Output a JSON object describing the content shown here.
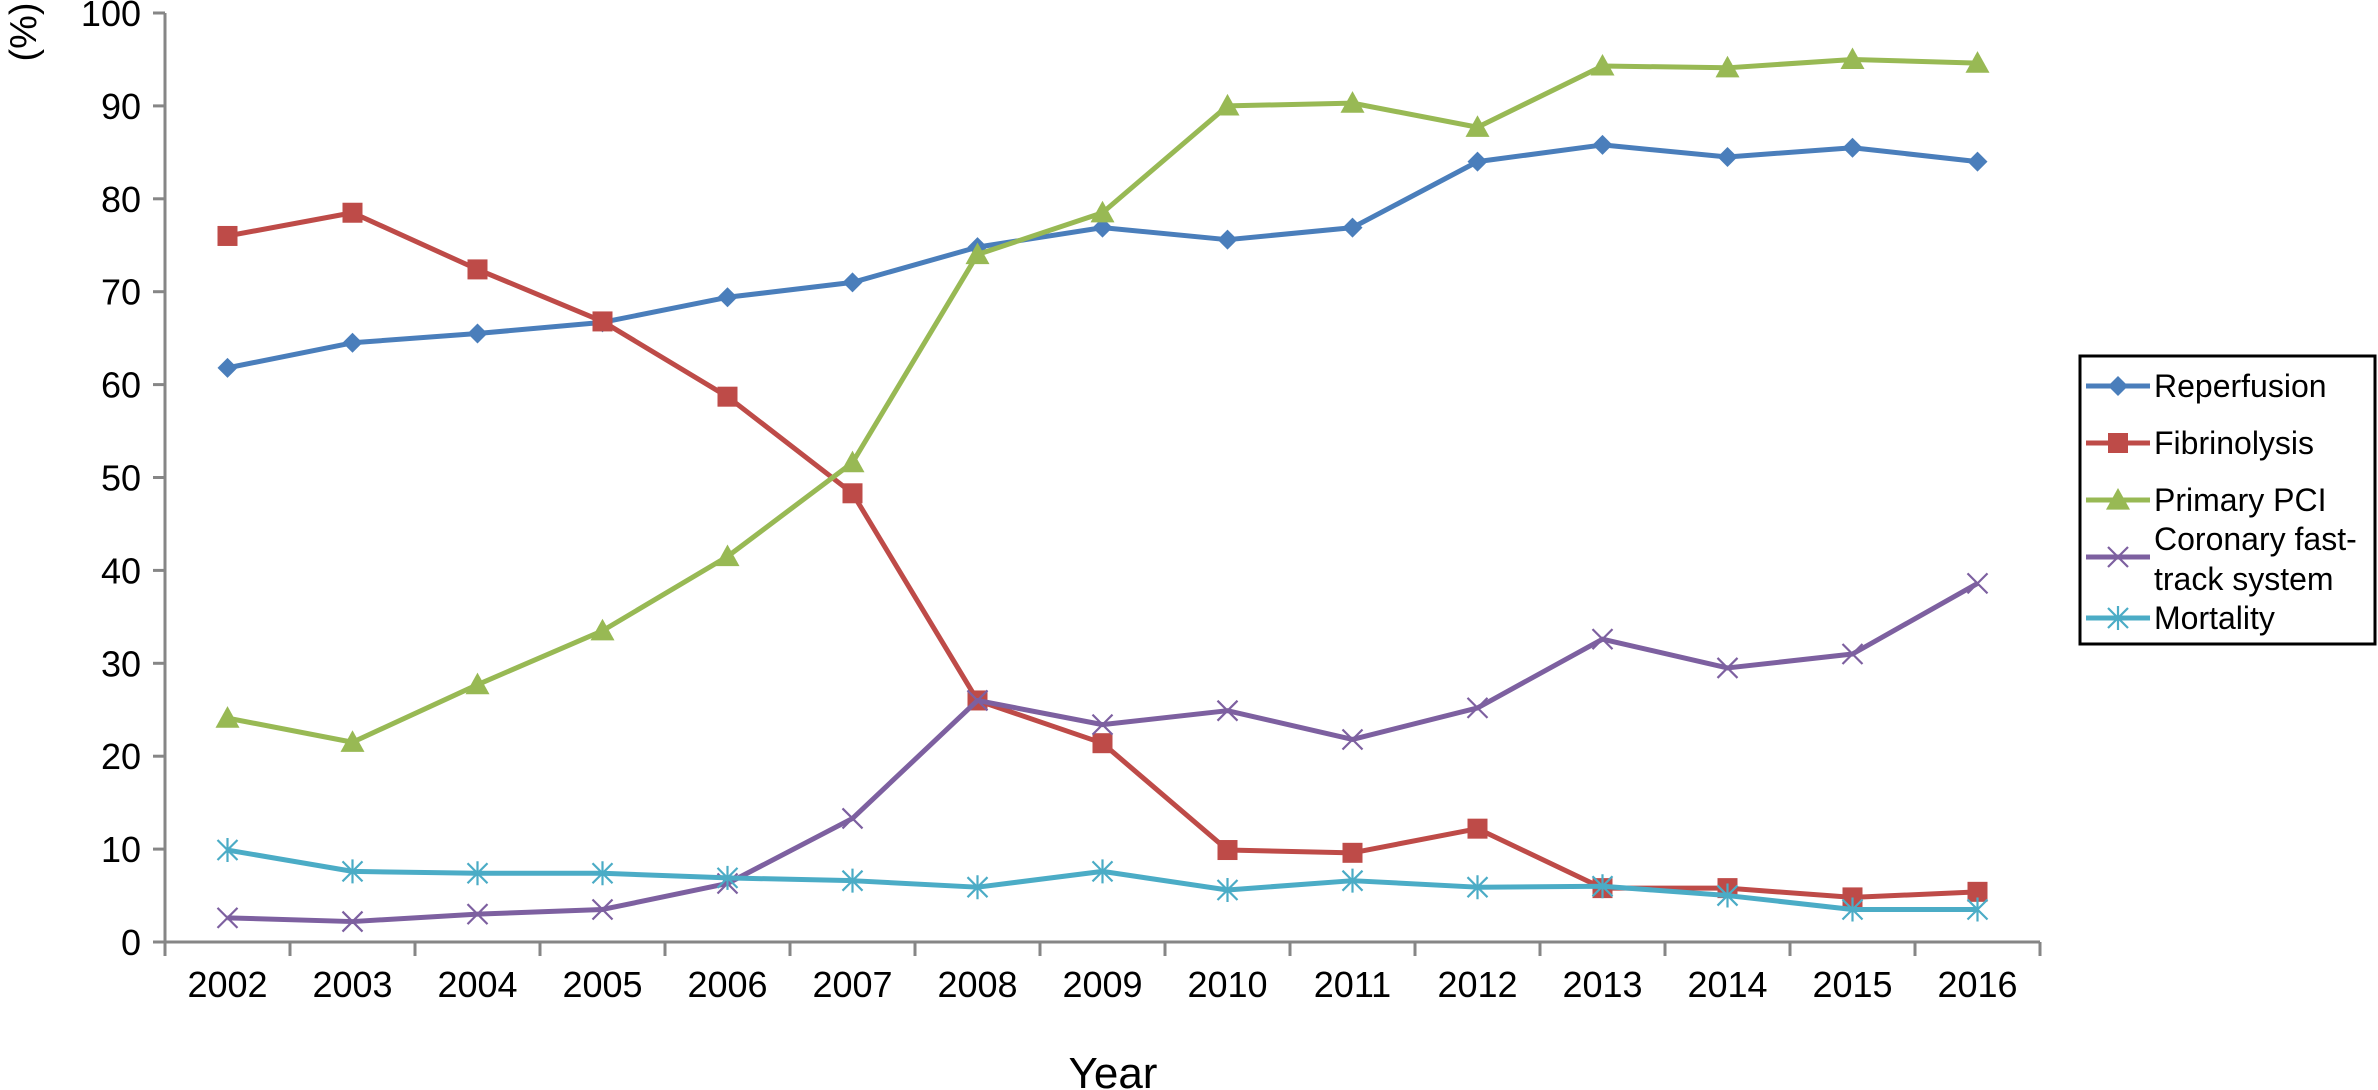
{
  "chart_data": {
    "type": "line",
    "title": "",
    "xlabel": "Year",
    "ylabel": "(%)",
    "ylim": [
      0,
      100
    ],
    "yticks": [
      0,
      10,
      20,
      30,
      40,
      50,
      60,
      70,
      80,
      90,
      100
    ],
    "categories": [
      "2002",
      "2003",
      "2004",
      "2005",
      "2006",
      "2007",
      "2008",
      "2009",
      "2010",
      "2011",
      "2012",
      "2013",
      "2014",
      "2015",
      "2016"
    ],
    "grid": false,
    "legend_position": "right",
    "series": [
      {
        "name": "Reperfusion",
        "color": "#4a7ebb",
        "marker": "diamond",
        "values": [
          61.8,
          64.5,
          65.5,
          66.7,
          69.4,
          71.0,
          74.8,
          76.9,
          75.6,
          76.9,
          84.0,
          85.8,
          84.5,
          85.5,
          84.0
        ]
      },
      {
        "name": "Fibrinolysis",
        "color": "#be4b48",
        "marker": "square",
        "values": [
          76.0,
          78.5,
          72.4,
          66.8,
          58.7,
          48.3,
          26.0,
          21.4,
          9.9,
          9.6,
          12.2,
          5.8,
          5.8,
          4.8,
          5.4
        ]
      },
      {
        "name": "Primary PCI",
        "color": "#98b954",
        "marker": "triangle",
        "values": [
          24.1,
          21.5,
          27.7,
          33.5,
          41.5,
          51.6,
          74.0,
          78.5,
          90.0,
          90.3,
          87.7,
          94.3,
          94.1,
          95.0,
          94.6
        ]
      },
      {
        "name": "Coronary fast-track system",
        "legend_lines": [
          "Coronary fast-",
          "track system"
        ],
        "color": "#7d60a0",
        "marker": "x",
        "values": [
          2.6,
          2.2,
          3.0,
          3.5,
          6.3,
          13.3,
          26.0,
          23.4,
          24.9,
          21.8,
          25.2,
          32.6,
          29.5,
          31.0,
          38.6
        ]
      },
      {
        "name": "Mortality",
        "color": "#4bacc6",
        "marker": "star",
        "values": [
          9.9,
          7.6,
          7.4,
          7.4,
          6.9,
          6.6,
          5.9,
          7.6,
          5.6,
          6.6,
          5.9,
          6.0,
          5.0,
          3.5,
          3.5
        ]
      }
    ]
  }
}
